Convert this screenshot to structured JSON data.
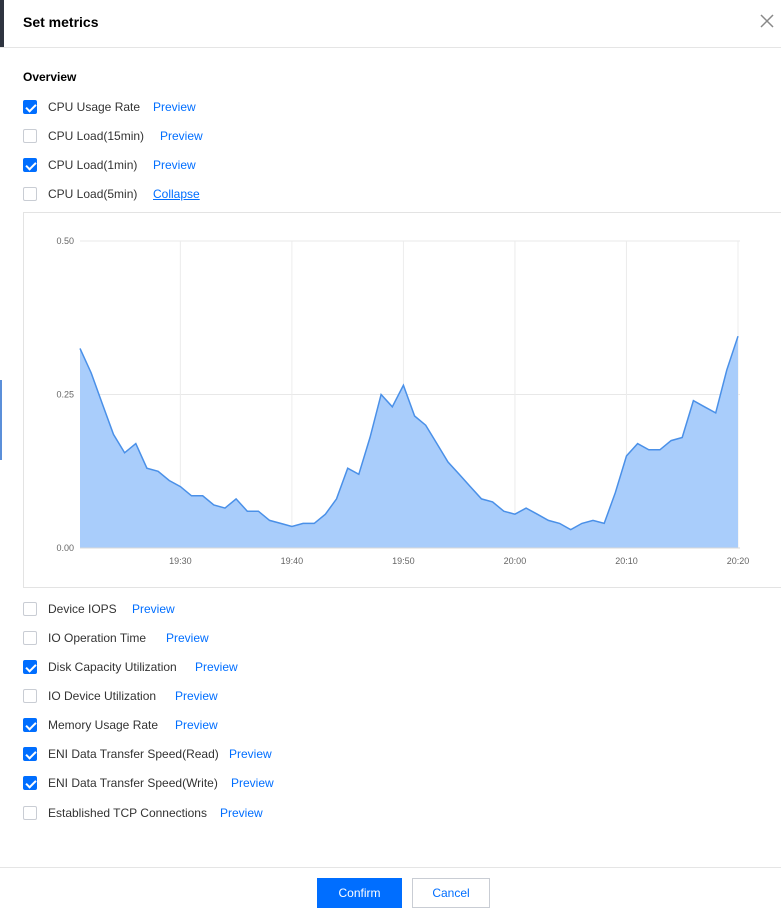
{
  "dialog": {
    "title": "Set metrics",
    "close_icon": "close-icon"
  },
  "overview": {
    "section_title": "Overview",
    "top_metrics": [
      {
        "label": "CPU Usage Rate",
        "checked": true,
        "link": "Preview"
      },
      {
        "label": "CPU Load(15min)",
        "checked": false,
        "link": "Preview"
      },
      {
        "label": "CPU Load(1min)",
        "checked": true,
        "link": "Preview"
      },
      {
        "label": "CPU Load(5min)",
        "checked": false,
        "link": "Collapse"
      }
    ],
    "bottom_metrics": [
      {
        "label": "Device IOPS",
        "checked": false,
        "link": "Preview"
      },
      {
        "label": "IO Operation Time",
        "checked": false,
        "link": "Preview"
      },
      {
        "label": "Disk Capacity Utilization",
        "checked": true,
        "link": "Preview"
      },
      {
        "label": "IO Device Utilization",
        "checked": false,
        "link": "Preview"
      },
      {
        "label": "Memory Usage Rate",
        "checked": true,
        "link": "Preview"
      },
      {
        "label": "ENI Data Transfer Speed(Read)",
        "checked": true,
        "link": "Preview"
      },
      {
        "label": "ENI Data Transfer Speed(Write)",
        "checked": true,
        "link": "Preview"
      },
      {
        "label": "Established TCP Connections",
        "checked": false,
        "link": "Preview"
      }
    ]
  },
  "chart_data": {
    "type": "area",
    "title": "",
    "xlabel": "",
    "ylabel": "",
    "x_tick_labels": [
      "19:30",
      "19:40",
      "19:50",
      "20:00",
      "20:10",
      "20:20"
    ],
    "y_tick_labels": [
      "0.00",
      "0.25",
      "0.50"
    ],
    "ylim": [
      0,
      0.5
    ],
    "x_minutes_range": [
      "19:21",
      "20:20"
    ],
    "grid": true,
    "fill_color": "#a9cdfb",
    "line_color": "#4a90e8",
    "series": [
      {
        "x": [
          "19:21",
          "19:22",
          "19:23",
          "19:24",
          "19:25",
          "19:26",
          "19:27",
          "19:28",
          "19:29",
          "19:30",
          "19:31",
          "19:32",
          "19:33",
          "19:34",
          "19:35",
          "19:36",
          "19:37",
          "19:38",
          "19:39",
          "19:40",
          "19:41",
          "19:42",
          "19:43",
          "19:44",
          "19:45",
          "19:46",
          "19:47",
          "19:48",
          "19:49",
          "19:50",
          "19:51",
          "19:52",
          "19:53",
          "19:54",
          "19:55",
          "19:56",
          "19:57",
          "19:58",
          "19:59",
          "20:00",
          "20:01",
          "20:02",
          "20:03",
          "20:04",
          "20:05",
          "20:06",
          "20:07",
          "20:08",
          "20:09",
          "20:10",
          "20:11",
          "20:12",
          "20:13",
          "20:14",
          "20:15",
          "20:16",
          "20:17",
          "20:18",
          "20:19",
          "20:20"
        ],
        "values": [
          0.325,
          0.285,
          0.235,
          0.185,
          0.155,
          0.17,
          0.13,
          0.125,
          0.11,
          0.1,
          0.085,
          0.085,
          0.07,
          0.065,
          0.08,
          0.06,
          0.06,
          0.045,
          0.04,
          0.035,
          0.04,
          0.04,
          0.055,
          0.08,
          0.13,
          0.12,
          0.18,
          0.25,
          0.23,
          0.265,
          0.215,
          0.2,
          0.17,
          0.14,
          0.12,
          0.1,
          0.08,
          0.075,
          0.06,
          0.055,
          0.065,
          0.055,
          0.045,
          0.04,
          0.03,
          0.04,
          0.045,
          0.04,
          0.09,
          0.15,
          0.17,
          0.16,
          0.16,
          0.175,
          0.18,
          0.24,
          0.23,
          0.22,
          0.29,
          0.345
        ]
      }
    ]
  },
  "footer": {
    "confirm_label": "Confirm",
    "cancel_label": "Cancel"
  },
  "colors": {
    "accent": "#006eff",
    "text": "#333333"
  }
}
